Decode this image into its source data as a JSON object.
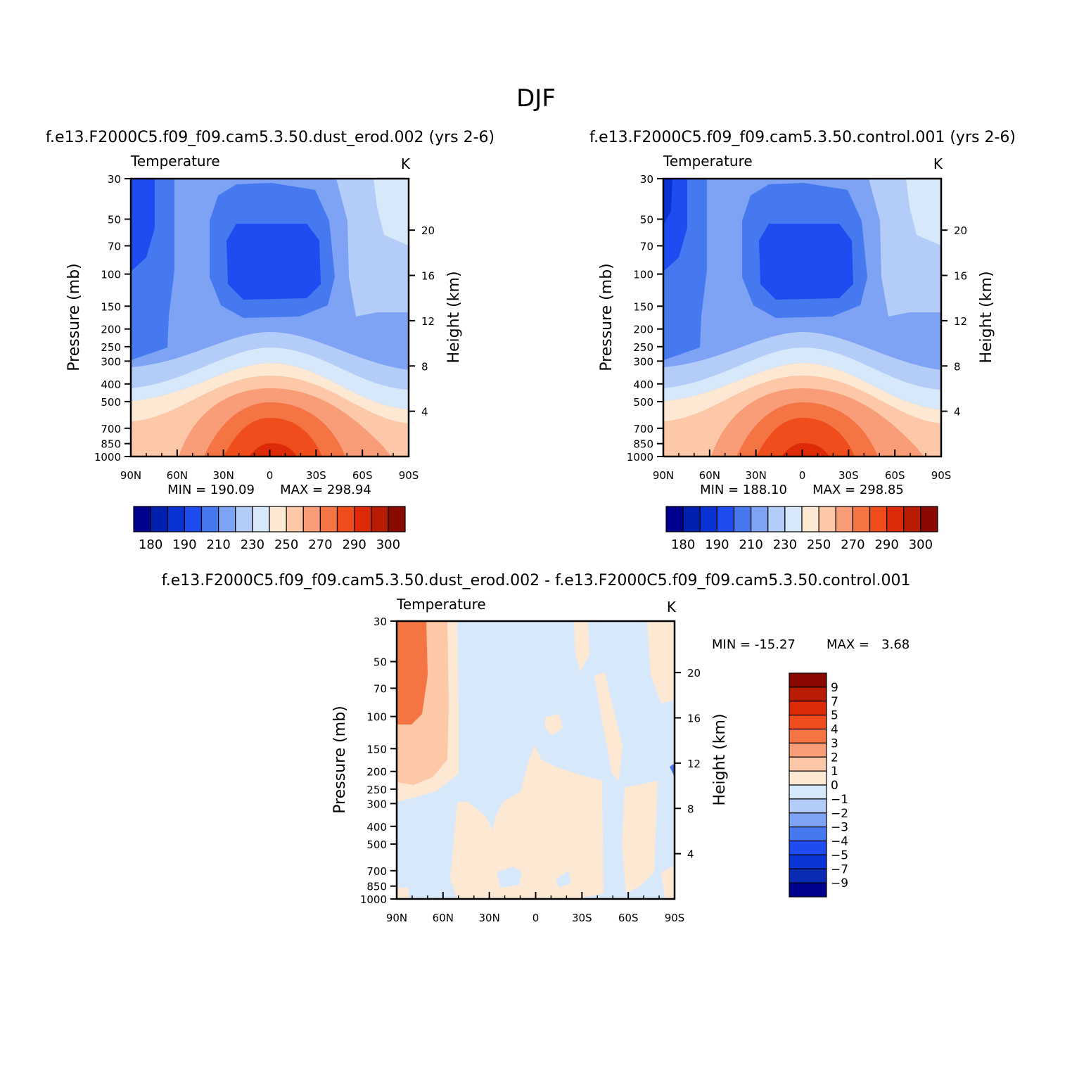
{
  "figure_title": "DJF",
  "colors": {
    "abs": [
      "#00008f",
      "#0020b0",
      "#0a32d2",
      "#1e4cf0",
      "#4678f0",
      "#7ea2f4",
      "#b4ccf8",
      "#d8e8fb",
      "#fde8d4",
      "#fdc8a8",
      "#f99c78",
      "#f57444",
      "#ef4d1c",
      "#dd2a08",
      "#b81d04",
      "#8a0a02"
    ],
    "diff": [
      "#00008f",
      "#0a2cb4",
      "#0a36d8",
      "#1e4cf0",
      "#4678f0",
      "#7ea2f4",
      "#b4ccf8",
      "#d8e8fb",
      "#fde8d4",
      "#fdc8a8",
      "#f99c78",
      "#f57444",
      "#ef4d1c",
      "#dd2a08",
      "#b81d04",
      "#8a0a02"
    ]
  },
  "axes": {
    "ylabel": "Pressure (mb)",
    "ylabel_right": "Height (km)",
    "pressure_ticks": [
      "30",
      "50",
      "70",
      "100",
      "150",
      "200",
      "250",
      "300",
      "400",
      "500",
      "700",
      "850",
      "1000"
    ],
    "height_ticks": [
      "20",
      "16",
      "12",
      "8",
      "4"
    ],
    "lat_ticks": [
      "90N",
      "60N",
      "30N",
      "0",
      "30S",
      "60S",
      "90S"
    ]
  },
  "panels": [
    {
      "title": "f.e13.F2000C5.f09_f09.cam5.3.50.dust_erod.002 (yrs 2-6)",
      "variable": "Temperature",
      "units": "K",
      "min_label": "MIN = 190.09",
      "max_label": "MAX = 298.94",
      "colorbar_labels": [
        "180",
        "190",
        "210",
        "230",
        "250",
        "270",
        "290",
        "300"
      ]
    },
    {
      "title": "f.e13.F2000C5.f09_f09.cam5.3.50.control.001 (yrs 2-6)",
      "variable": "Temperature",
      "units": "K",
      "min_label": "MIN = 188.10",
      "max_label": "MAX = 298.85",
      "colorbar_labels": [
        "180",
        "190",
        "210",
        "230",
        "250",
        "270",
        "290",
        "300"
      ]
    },
    {
      "title": "f.e13.F2000C5.f09_f09.cam5.3.50.dust_erod.002 - f.e13.F2000C5.f09_f09.cam5.3.50.control.001",
      "variable": "Temperature",
      "units": "K",
      "min_label": "MIN = -15.27",
      "max_label": "MAX =   3.68",
      "colorbar_labels": [
        "9",
        "7",
        "5",
        "4",
        "3",
        "2",
        "1",
        "0",
        "-1",
        "-2",
        "-3",
        "-4",
        "-5",
        "-7",
        "-9"
      ]
    }
  ],
  "chart_data": [
    {
      "type": "heatmap",
      "title": "f.e13.F2000C5.f09_f09.cam5.3.50.dust_erod.002 (yrs 2-6)",
      "variable": "Temperature",
      "units": "K",
      "x": "latitude",
      "y": "pressure (mb)",
      "xlim": [
        "90N",
        "90S"
      ],
      "ylim": [
        1000,
        30
      ],
      "min": 190.09,
      "max": 298.94,
      "levels": [
        180,
        185,
        190,
        200,
        210,
        220,
        230,
        240,
        250,
        260,
        270,
        280,
        290,
        295,
        300
      ],
      "features": {
        "tropical_tropopause_min_K": 192,
        "surface_equator_max_K": 298,
        "high_lat_south_upper_K": 238
      }
    },
    {
      "type": "heatmap",
      "title": "f.e13.F2000C5.f09_f09.cam5.3.50.control.001 (yrs 2-6)",
      "variable": "Temperature",
      "units": "K",
      "x": "latitude",
      "y": "pressure (mb)",
      "xlim": [
        "90N",
        "90S"
      ],
      "ylim": [
        1000,
        30
      ],
      "min": 188.1,
      "max": 298.85,
      "levels": [
        180,
        185,
        190,
        200,
        210,
        220,
        230,
        240,
        250,
        260,
        270,
        280,
        290,
        295,
        300
      ]
    },
    {
      "type": "heatmap",
      "title": "f.e13.F2000C5.f09_f09.cam5.3.50.dust_erod.002 - f.e13.F2000C5.f09_f09.cam5.3.50.control.001",
      "variable": "Temperature",
      "units": "K",
      "x": "latitude",
      "y": "pressure (mb)",
      "xlim": [
        "90N",
        "90S"
      ],
      "ylim": [
        1000,
        30
      ],
      "min": -15.27,
      "max": 3.68,
      "levels": [
        -9,
        -7,
        -5,
        -4,
        -3,
        -2,
        -1,
        0,
        1,
        2,
        3,
        4,
        5,
        7,
        9
      ]
    }
  ]
}
